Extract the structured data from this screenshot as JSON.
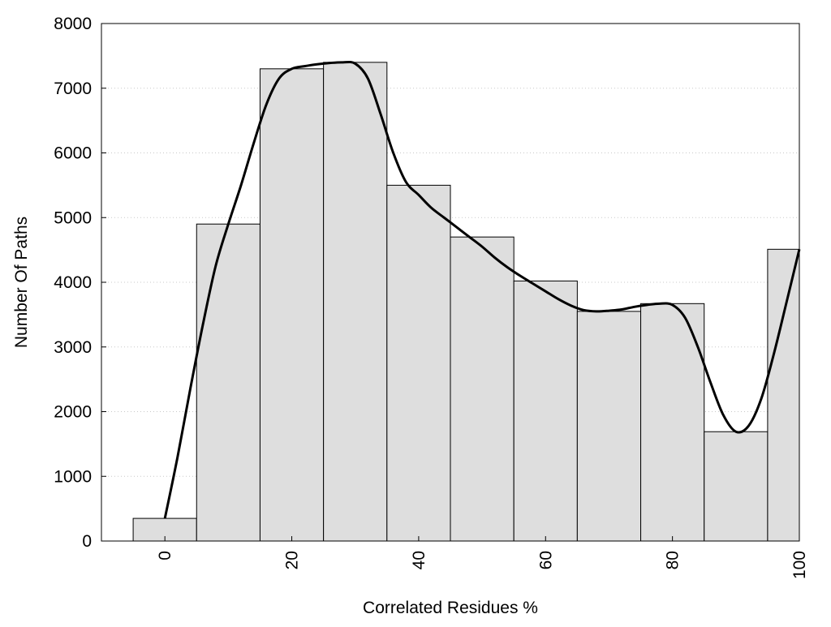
{
  "chart_data": {
    "type": "bar",
    "title": "",
    "xlabel": "Correlated Residues %",
    "ylabel": "Number Of Paths",
    "xlim": [
      -10,
      100
    ],
    "ylim": [
      0,
      8000
    ],
    "x_ticks": [
      0,
      20,
      40,
      60,
      80,
      100
    ],
    "y_ticks": [
      0,
      1000,
      2000,
      3000,
      4000,
      5000,
      6000,
      7000,
      8000
    ],
    "bin_width": 10,
    "bins": [
      {
        "center": 0,
        "value": 350
      },
      {
        "center": 10,
        "value": 4900
      },
      {
        "center": 20,
        "value": 7300
      },
      {
        "center": 30,
        "value": 7400
      },
      {
        "center": 40,
        "value": 5500
      },
      {
        "center": 50,
        "value": 4700
      },
      {
        "center": 60,
        "value": 4020
      },
      {
        "center": 70,
        "value": 3550
      },
      {
        "center": 80,
        "value": 3670
      },
      {
        "center": 90,
        "value": 1690
      },
      {
        "center": 100,
        "value": 4510
      }
    ],
    "curve": {
      "x": [
        0,
        2,
        4,
        6,
        8,
        10,
        12,
        14,
        16,
        18,
        20,
        22,
        24,
        26,
        28,
        30,
        32,
        34,
        36,
        38,
        40,
        42,
        44,
        46,
        48,
        50,
        52,
        54,
        56,
        58,
        60,
        62,
        64,
        66,
        68,
        70,
        72,
        74,
        76,
        78,
        80,
        82,
        84,
        86,
        88,
        90,
        92,
        94,
        96,
        98,
        100
      ],
      "y": [
        350,
        1300,
        2350,
        3350,
        4250,
        4900,
        5500,
        6150,
        6750,
        7150,
        7300,
        7340,
        7370,
        7390,
        7400,
        7380,
        7150,
        6600,
        6000,
        5550,
        5350,
        5150,
        5000,
        4850,
        4700,
        4550,
        4380,
        4230,
        4100,
        3980,
        3860,
        3740,
        3640,
        3570,
        3550,
        3560,
        3580,
        3620,
        3650,
        3670,
        3650,
        3450,
        3000,
        2450,
        1950,
        1690,
        1780,
        2200,
        2900,
        3700,
        4510
      ]
    },
    "fill_color": "#dedede",
    "edge_color": "#000000",
    "grid": "horizontal dotted",
    "legend": "none"
  }
}
